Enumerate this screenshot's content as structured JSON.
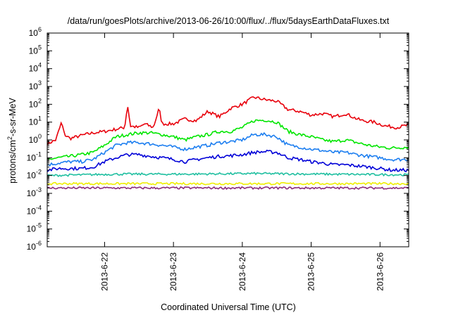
{
  "chart_data": {
    "type": "line",
    "title": "/data/run/goesPlots/archive/2013-06-26/10:00/flux/../flux/5daysEarthDataFluxes.txt",
    "xlabel": "Coordinated Universal Time (UTC)",
    "ylabel": {
      "base": "protons/cm",
      "sup": "2",
      "rest": "-s-sr-MeV"
    },
    "x_scale": "time",
    "y_scale": "log",
    "xlim": [
      "2013-06-21 04:00",
      "2013-06-26 10:00"
    ],
    "ylim": [
      1e-06,
      1000000.0
    ],
    "x_ticks": [
      "2013-6-22",
      "2013-6-23",
      "2013-6-24",
      "2013-6-25",
      "2013-6-26"
    ],
    "y_ticks": [
      {
        "base": "10",
        "exp": "-6",
        "value": 1e-06
      },
      {
        "base": "10",
        "exp": "-5",
        "value": 1e-05
      },
      {
        "base": "10",
        "exp": "-4",
        "value": 0.0001
      },
      {
        "base": "10",
        "exp": "-3",
        "value": 0.001
      },
      {
        "base": "10",
        "exp": "-2",
        "value": 0.01
      },
      {
        "base": "10",
        "exp": "-1",
        "value": 0.1
      },
      {
        "base": "10",
        "exp": "0",
        "value": 1
      },
      {
        "base": "10",
        "exp": "1",
        "value": 10
      },
      {
        "base": "10",
        "exp": "2",
        "value": 100
      },
      {
        "base": "10",
        "exp": "3",
        "value": 1000
      },
      {
        "base": "10",
        "exp": "4",
        "value": 10000
      },
      {
        "base": "10",
        "exp": "5",
        "value": 100000
      },
      {
        "base": "10",
        "exp": "6",
        "value": 1000000
      }
    ],
    "grid": false,
    "legend": "none",
    "series": [
      {
        "color": "#e8000b",
        "x": [
          "2013-06-21 04:00",
          "2013-06-21 07:00",
          "2013-06-21 09:00",
          "2013-06-21 10:00",
          "2013-06-21 12:00",
          "2013-06-21 16:00",
          "2013-06-21 20:00",
          "2013-06-22 00:00",
          "2013-06-22 04:00",
          "2013-06-22 07:00",
          "2013-06-22 08:00",
          "2013-06-22 09:00",
          "2013-06-22 12:00",
          "2013-06-22 14:00",
          "2013-06-22 17:00",
          "2013-06-22 19:00",
          "2013-06-22 20:00",
          "2013-06-23 00:00",
          "2013-06-23 04:00",
          "2013-06-23 08:00",
          "2013-06-23 12:00",
          "2013-06-23 16:00",
          "2013-06-23 20:00",
          "2013-06-24 00:00",
          "2013-06-24 04:00",
          "2013-06-24 08:00",
          "2013-06-24 12:00",
          "2013-06-24 16:00",
          "2013-06-24 20:00",
          "2013-06-25 00:00",
          "2013-06-25 04:00",
          "2013-06-25 08:00",
          "2013-06-25 12:00",
          "2013-06-25 16:00",
          "2013-06-25 18:00",
          "2013-06-25 22:00",
          "2013-06-26 02:00",
          "2013-06-26 06:00",
          "2013-06-26 10:00"
        ],
        "y": [
          0.6,
          1,
          10,
          2,
          1.2,
          1.8,
          2.5,
          3,
          4,
          5,
          100,
          6,
          5,
          8,
          5,
          60,
          8,
          8,
          15,
          12,
          40,
          20,
          60,
          100,
          250,
          180,
          150,
          50,
          40,
          25,
          30,
          20,
          30,
          15,
          12,
          10,
          6,
          5,
          7
        ]
      },
      {
        "color": "#00e600",
        "x": [
          "2013-06-21 04:00",
          "2013-06-21 08:00",
          "2013-06-21 12:00",
          "2013-06-21 16:00",
          "2013-06-21 20:00",
          "2013-06-22 00:00",
          "2013-06-22 04:00",
          "2013-06-22 08:00",
          "2013-06-22 12:00",
          "2013-06-22 16:00",
          "2013-06-22 20:00",
          "2013-06-23 00:00",
          "2013-06-23 04:00",
          "2013-06-23 08:00",
          "2013-06-23 12:00",
          "2013-06-23 16:00",
          "2013-06-23 20:00",
          "2013-06-24 00:00",
          "2013-06-24 04:00",
          "2013-06-24 08:00",
          "2013-06-24 12:00",
          "2013-06-24 16:00",
          "2013-06-24 20:00",
          "2013-06-25 00:00",
          "2013-06-25 04:00",
          "2013-06-25 08:00",
          "2013-06-25 12:00",
          "2013-06-25 16:00",
          "2013-06-25 20:00",
          "2013-06-26 00:00",
          "2013-06-26 04:00",
          "2013-06-26 10:00"
        ],
        "y": [
          0.08,
          0.1,
          0.12,
          0.15,
          0.2,
          0.5,
          1.5,
          2,
          2.5,
          2.5,
          2,
          1.5,
          1,
          1.5,
          2,
          3,
          3,
          5,
          12,
          13,
          10,
          3,
          2,
          1.5,
          1,
          0.8,
          1,
          0.7,
          0.5,
          0.4,
          0.35,
          0.4
        ]
      },
      {
        "color": "#1c7ef0",
        "x": [
          "2013-06-21 04:00",
          "2013-06-21 08:00",
          "2013-06-21 12:00",
          "2013-06-21 16:00",
          "2013-06-21 20:00",
          "2013-06-22 00:00",
          "2013-06-22 04:00",
          "2013-06-22 08:00",
          "2013-06-22 12:00",
          "2013-06-22 16:00",
          "2013-06-22 20:00",
          "2013-06-23 00:00",
          "2013-06-23 04:00",
          "2013-06-23 08:00",
          "2013-06-23 12:00",
          "2013-06-23 16:00",
          "2013-06-23 20:00",
          "2013-06-24 00:00",
          "2013-06-24 04:00",
          "2013-06-24 08:00",
          "2013-06-24 12:00",
          "2013-06-24 16:00",
          "2013-06-24 20:00",
          "2013-06-25 00:00",
          "2013-06-25 04:00",
          "2013-06-25 08:00",
          "2013-06-25 12:00",
          "2013-06-25 16:00",
          "2013-06-25 20:00",
          "2013-06-26 00:00",
          "2013-06-26 04:00",
          "2013-06-26 10:00"
        ],
        "y": [
          0.04,
          0.05,
          0.06,
          0.06,
          0.08,
          0.2,
          0.5,
          0.7,
          0.7,
          0.6,
          0.5,
          0.4,
          0.3,
          0.4,
          0.5,
          0.7,
          0.8,
          1,
          2,
          2,
          1.5,
          0.5,
          0.4,
          0.3,
          0.25,
          0.2,
          0.2,
          0.15,
          0.12,
          0.1,
          0.08,
          0.08
        ]
      },
      {
        "color": "#0000d8",
        "x": [
          "2013-06-21 04:00",
          "2013-06-21 08:00",
          "2013-06-21 12:00",
          "2013-06-21 16:00",
          "2013-06-21 20:00",
          "2013-06-22 00:00",
          "2013-06-22 04:00",
          "2013-06-22 08:00",
          "2013-06-22 12:00",
          "2013-06-22 16:00",
          "2013-06-22 20:00",
          "2013-06-23 00:00",
          "2013-06-23 04:00",
          "2013-06-23 08:00",
          "2013-06-23 12:00",
          "2013-06-23 16:00",
          "2013-06-23 20:00",
          "2013-06-24 00:00",
          "2013-06-24 04:00",
          "2013-06-24 08:00",
          "2013-06-24 12:00",
          "2013-06-24 16:00",
          "2013-06-24 20:00",
          "2013-06-25 00:00",
          "2013-06-25 04:00",
          "2013-06-25 08:00",
          "2013-06-25 12:00",
          "2013-06-25 16:00",
          "2013-06-25 20:00",
          "2013-06-26 00:00",
          "2013-06-26 04:00",
          "2013-06-26 10:00"
        ],
        "y": [
          0.02,
          0.025,
          0.025,
          0.025,
          0.03,
          0.06,
          0.1,
          0.15,
          0.15,
          0.12,
          0.1,
          0.08,
          0.06,
          0.08,
          0.1,
          0.12,
          0.13,
          0.15,
          0.2,
          0.22,
          0.2,
          0.1,
          0.08,
          0.06,
          0.05,
          0.04,
          0.04,
          0.035,
          0.03,
          0.025,
          0.02,
          0.02
        ]
      },
      {
        "color": "#1fbfa0",
        "x": [
          "2013-06-21 04:00",
          "2013-06-22 04:00",
          "2013-06-23 04:00",
          "2013-06-24 04:00",
          "2013-06-25 04:00",
          "2013-06-26 10:00"
        ],
        "y": [
          0.01,
          0.012,
          0.012,
          0.013,
          0.012,
          0.011
        ]
      },
      {
        "color": "#eeee00",
        "x": [
          "2013-06-21 04:00",
          "2013-06-22 04:00",
          "2013-06-23 04:00",
          "2013-06-24 04:00",
          "2013-06-25 04:00",
          "2013-06-26 10:00"
        ],
        "y": [
          0.0035,
          0.0035,
          0.0035,
          0.0035,
          0.0035,
          0.0035
        ]
      },
      {
        "color": "#8a2a7a",
        "x": [
          "2013-06-21 04:00",
          "2013-06-22 04:00",
          "2013-06-23 04:00",
          "2013-06-24 04:00",
          "2013-06-25 04:00",
          "2013-06-26 10:00"
        ],
        "y": [
          0.002,
          0.002,
          0.002,
          0.002,
          0.002,
          0.002
        ]
      }
    ]
  }
}
